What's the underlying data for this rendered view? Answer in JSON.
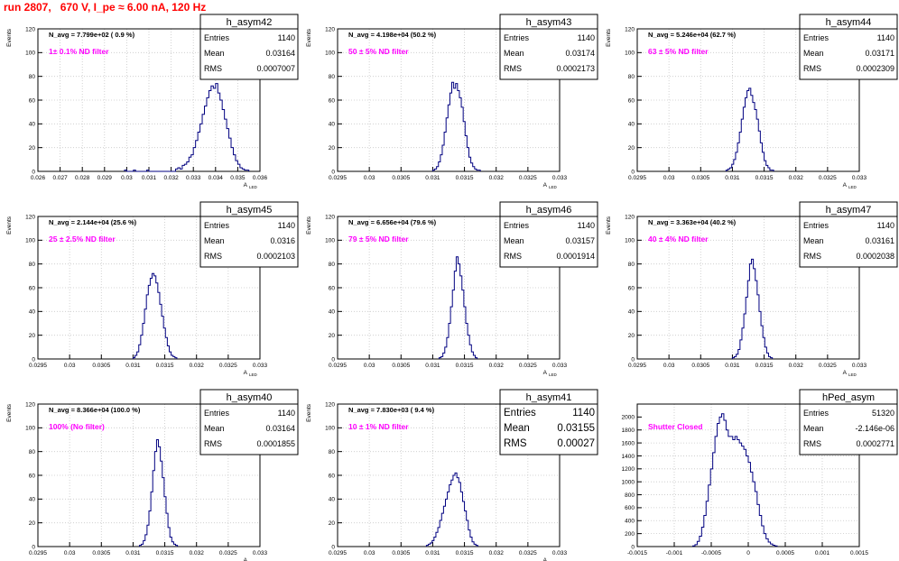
{
  "page_title": "run 2807,   670 V, I_pe ≈ 6.00 nA, 120 Hz",
  "colors": {
    "title": "#ff0000",
    "annotation": "#ff00ff",
    "histogram": "#000080",
    "grid": "#c8c8c8",
    "frame": "#000000"
  },
  "chart_data": [
    {
      "type": "histogram",
      "name": "h_asym42",
      "stats": {
        "entries": "1140",
        "mean": "0.03164",
        "rms": "0.0007007"
      },
      "navg": "N_avg = 7.799e+02 ( 0.9 %)",
      "annotation": "1± 0.1% ND filter",
      "xlabel": "A",
      "xlabel_sub": "LED",
      "ylabel": "Events",
      "grid": true,
      "xlim": [
        0.026,
        0.036
      ],
      "ylim": [
        0,
        120
      ],
      "xticks": [
        "0.026",
        "0.027",
        "0.028",
        "0.029",
        "0.03",
        "0.031",
        "0.032",
        "0.033",
        "0.034",
        "0.035",
        "0.036"
      ],
      "yticks": [
        "0",
        "20",
        "40",
        "60",
        "80",
        "100",
        "120"
      ],
      "x_start": 0.0299,
      "bin_width": 0.0001,
      "counts": [
        1,
        0,
        0,
        0,
        1,
        0,
        0,
        0,
        0,
        0,
        1,
        0,
        0,
        0,
        0,
        0,
        0,
        0,
        0,
        0,
        0,
        0,
        0,
        2,
        3,
        2,
        5,
        6,
        8,
        12,
        14,
        20,
        26,
        33,
        40,
        48,
        55,
        62,
        68,
        72,
        70,
        74,
        66,
        60,
        52,
        44,
        36,
        28,
        20,
        14,
        9,
        6,
        3,
        2,
        1,
        1
      ]
    },
    {
      "type": "histogram",
      "name": "h_asym43",
      "stats": {
        "entries": "1140",
        "mean": "0.03174",
        "rms": "0.0002173"
      },
      "navg": "N_avg = 4.198e+04 (50.2 %)",
      "annotation": "50 ± 5% ND filter",
      "xlabel": "A",
      "xlabel_sub": "LED",
      "ylabel": "Events",
      "grid": true,
      "xlim": [
        0.0295,
        0.033
      ],
      "ylim": [
        0,
        120
      ],
      "xticks": [
        "0.0295",
        "0.03",
        "0.0305",
        "0.031",
        "0.0315",
        "0.032",
        "0.0325",
        "0.033"
      ],
      "yticks": [
        "0",
        "20",
        "40",
        "60",
        "80",
        "100",
        "120"
      ],
      "x_start": 0.031,
      "bin_width": 3e-05,
      "counts": [
        1,
        2,
        4,
        8,
        14,
        22,
        33,
        45,
        56,
        66,
        75,
        70,
        74,
        68,
        62,
        54,
        42,
        30,
        20,
        12,
        7,
        4,
        2,
        1,
        1
      ]
    },
    {
      "type": "histogram",
      "name": "h_asym44",
      "stats": {
        "entries": "1140",
        "mean": "0.03171",
        "rms": "0.0002309"
      },
      "navg": "N_avg = 5.246e+04 (62.7 %)",
      "annotation": "63 ± 5% ND filter",
      "xlabel": "A",
      "xlabel_sub": "LED",
      "ylabel": "Events",
      "grid": true,
      "xlim": [
        0.0295,
        0.033
      ],
      "ylim": [
        0,
        120
      ],
      "xticks": [
        "0.0295",
        "0.03",
        "0.0305",
        "0.031",
        "0.0315",
        "0.032",
        "0.0325",
        "0.033"
      ],
      "yticks": [
        "0",
        "20",
        "40",
        "60",
        "80",
        "100",
        "120"
      ],
      "x_start": 0.0309,
      "bin_width": 3e-05,
      "counts": [
        1,
        2,
        3,
        6,
        10,
        16,
        24,
        33,
        44,
        54,
        62,
        68,
        70,
        64,
        58,
        52,
        44,
        34,
        24,
        16,
        9,
        5,
        3,
        1,
        1
      ]
    },
    {
      "type": "histogram",
      "name": "h_asym45",
      "stats": {
        "entries": "1140",
        "mean": "0.0316",
        "rms": "0.0002103"
      },
      "navg": "N_avg = 2.144e+04 (25.6 %)",
      "annotation": "25 ± 2.5% ND filter",
      "xlabel": "A",
      "xlabel_sub": "LED",
      "ylabel": "Events",
      "grid": true,
      "xlim": [
        0.0295,
        0.033
      ],
      "ylim": [
        0,
        120
      ],
      "xticks": [
        "0.0295",
        "0.03",
        "0.0305",
        "0.031",
        "0.0315",
        "0.032",
        "0.0325",
        "0.033"
      ],
      "yticks": [
        "0",
        "20",
        "40",
        "60",
        "80",
        "100",
        "120"
      ],
      "x_start": 0.031,
      "bin_width": 3e-05,
      "counts": [
        1,
        3,
        6,
        12,
        20,
        30,
        42,
        54,
        62,
        68,
        72,
        70,
        64,
        56,
        46,
        36,
        26,
        18,
        11,
        6,
        3,
        2,
        1
      ]
    },
    {
      "type": "histogram",
      "name": "h_asym46",
      "stats": {
        "entries": "1140",
        "mean": "0.03157",
        "rms": "0.0001914"
      },
      "navg": "N_avg = 6.656e+04 (79.6 %)",
      "annotation": "79 ± 5% ND filter",
      "xlabel": "A",
      "xlabel_sub": "LED",
      "ylabel": "Events",
      "grid": true,
      "xlim": [
        0.0295,
        0.033
      ],
      "ylim": [
        0,
        120
      ],
      "xticks": [
        "0.0295",
        "0.03",
        "0.0305",
        "0.031",
        "0.0315",
        "0.032",
        "0.0325",
        "0.033"
      ],
      "yticks": [
        "0",
        "20",
        "40",
        "60",
        "80",
        "100",
        "120"
      ],
      "x_start": 0.0311,
      "bin_width": 3e-05,
      "counts": [
        1,
        2,
        5,
        10,
        18,
        30,
        44,
        58,
        74,
        86,
        80,
        70,
        58,
        44,
        30,
        20,
        12,
        6,
        3,
        1
      ]
    },
    {
      "type": "histogram",
      "name": "h_asym47",
      "stats": {
        "entries": "1140",
        "mean": "0.03161",
        "rms": "0.0002038"
      },
      "navg": "N_avg = 3.363e+04 (40.2 %)",
      "annotation": "40 ± 4% ND filter",
      "xlabel": "A",
      "xlabel_sub": "LED",
      "ylabel": "Events",
      "grid": true,
      "xlim": [
        0.0295,
        0.033
      ],
      "ylim": [
        0,
        120
      ],
      "xticks": [
        "0.0295",
        "0.03",
        "0.0305",
        "0.031",
        "0.0315",
        "0.032",
        "0.0325",
        "0.033"
      ],
      "yticks": [
        "0",
        "20",
        "40",
        "60",
        "80",
        "100",
        "120"
      ],
      "x_start": 0.031,
      "bin_width": 3e-05,
      "counts": [
        1,
        2,
        4,
        8,
        16,
        26,
        38,
        52,
        66,
        80,
        84,
        76,
        66,
        54,
        40,
        28,
        18,
        10,
        5,
        2,
        1
      ]
    },
    {
      "type": "histogram",
      "name": "h_asym40",
      "stats": {
        "entries": "1140",
        "mean": "0.03164",
        "rms": "0.0001855"
      },
      "navg": "N_avg = 8.366e+04 (100.0 %)",
      "annotation": "100% (No filter)",
      "xlabel": "A",
      "xlabel_sub": "LED",
      "ylabel": "Events",
      "grid": true,
      "xlim": [
        0.0295,
        0.033
      ],
      "ylim": [
        0,
        120
      ],
      "xticks": [
        "0.0295",
        "0.03",
        "0.0305",
        "0.031",
        "0.0315",
        "0.032",
        "0.0325",
        "0.033"
      ],
      "yticks": [
        "0",
        "20",
        "40",
        "60",
        "80",
        "100",
        "120"
      ],
      "x_start": 0.0311,
      "bin_width": 3e-05,
      "counts": [
        1,
        2,
        5,
        10,
        18,
        30,
        46,
        64,
        80,
        90,
        84,
        72,
        58,
        42,
        28,
        16,
        8,
        4,
        2,
        1
      ]
    },
    {
      "type": "histogram",
      "name": "h_asym41",
      "stats": {
        "entries": "1140",
        "mean": "0.03155",
        "rms": "0.00027"
      },
      "stats_large": true,
      "navg": "N_avg = 7.830e+03 ( 9.4 %)",
      "annotation": "10 ± 1% ND filter",
      "xlabel": "A",
      "xlabel_sub": "LED",
      "ylabel": "Events",
      "grid": true,
      "xlim": [
        0.0295,
        0.033
      ],
      "ylim": [
        0,
        120
      ],
      "xticks": [
        "0.0295",
        "0.03",
        "0.0305",
        "0.031",
        "0.0315",
        "0.032",
        "0.0325",
        "0.033"
      ],
      "yticks": [
        "0",
        "20",
        "40",
        "60",
        "80",
        "100",
        "120"
      ],
      "x_start": 0.0309,
      "bin_width": 3e-05,
      "counts": [
        1,
        2,
        3,
        5,
        8,
        12,
        16,
        22,
        28,
        34,
        40,
        46,
        52,
        56,
        60,
        62,
        58,
        54,
        46,
        38,
        30,
        22,
        14,
        8,
        4,
        2,
        1
      ]
    },
    {
      "type": "histogram",
      "name": "hPed_asym",
      "stats": {
        "entries": "51320",
        "mean": "-2.146e-06",
        "rms": "0.0002771"
      },
      "navg": "",
      "annotation": "Shutter Closed",
      "xlabel": "",
      "xlabel_sub": "",
      "ylabel": "",
      "grid": true,
      "xlim": [
        -0.0015,
        0.0015
      ],
      "ylim": [
        0,
        2200
      ],
      "xticks": [
        "-0.0015",
        "-0.001",
        "-0.0005",
        "0",
        "0.0005",
        "0.001",
        "0.0015"
      ],
      "yticks": [
        "0",
        "200",
        "400",
        "600",
        "800",
        "1000",
        "1200",
        "1400",
        "1600",
        "1800",
        "2000"
      ],
      "x_start": -0.00075,
      "bin_width": 3e-05,
      "counts": [
        10,
        30,
        80,
        160,
        300,
        480,
        700,
        950,
        1200,
        1450,
        1700,
        1900,
        2000,
        2050,
        1950,
        1800,
        1700,
        1700,
        1650,
        1700,
        1650,
        1600,
        1550,
        1500,
        1400,
        1300,
        1150,
        1000,
        850,
        650,
        480,
        320,
        200,
        120,
        70,
        40,
        20,
        10
      ]
    }
  ]
}
